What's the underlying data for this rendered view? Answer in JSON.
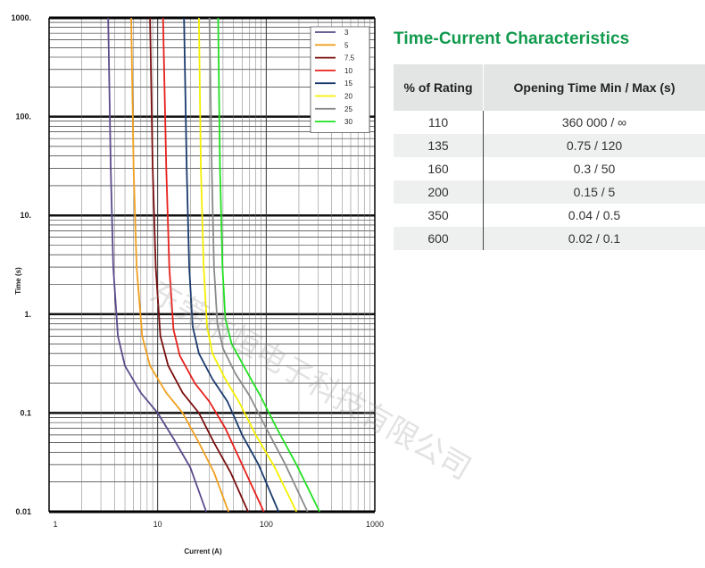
{
  "title": "Time-Current Characteristics",
  "table": {
    "headers": [
      "% of Rating",
      "Opening Time Min / Max (s)"
    ],
    "rows": [
      [
        "110",
        "360 000 / ∞"
      ],
      [
        "135",
        "0.75 / 120"
      ],
      [
        "160",
        "0.3 / 50"
      ],
      [
        "200",
        "0.15 / 5"
      ],
      [
        "350",
        "0.04 / 0.5"
      ],
      [
        "600",
        "0.02 / 0.1"
      ]
    ]
  },
  "watermark": "东莞市恒电子科技有限公司",
  "chart_data": {
    "type": "line",
    "xlabel": "Current (A)",
    "ylabel": "Time (s)",
    "x_scale": "log",
    "y_scale": "log",
    "xlim": [
      1,
      1000
    ],
    "ylim": [
      0.01,
      1000
    ],
    "x_tick_labels": [
      "1",
      "10",
      "100",
      "1000"
    ],
    "y_tick_labels": [
      "0.01",
      "0.1",
      "1.",
      "10.",
      "100.",
      "1000."
    ],
    "grid": true,
    "legend_position": "top-right",
    "series": [
      {
        "name": "3",
        "color": "#5a4a8a",
        "points": [
          [
            3.5,
            1000
          ],
          [
            3.7,
            30
          ],
          [
            3.9,
            3
          ],
          [
            4.3,
            0.6
          ],
          [
            5.0,
            0.3
          ],
          [
            7,
            0.16
          ],
          [
            10,
            0.1
          ],
          [
            14,
            0.055
          ],
          [
            20,
            0.028
          ],
          [
            28,
            0.01
          ]
        ]
      },
      {
        "name": "5",
        "color": "#f0a020",
        "points": [
          [
            5.7,
            1000
          ],
          [
            6.0,
            30
          ],
          [
            6.4,
            3
          ],
          [
            7.2,
            0.6
          ],
          [
            8.5,
            0.3
          ],
          [
            12,
            0.16
          ],
          [
            17,
            0.1
          ],
          [
            24,
            0.05
          ],
          [
            33,
            0.025
          ],
          [
            45,
            0.01
          ]
        ]
      },
      {
        "name": "7.5",
        "color": "#7a0f0f",
        "points": [
          [
            8.5,
            1000
          ],
          [
            9.0,
            30
          ],
          [
            9.6,
            3
          ],
          [
            10.6,
            0.6
          ],
          [
            12.5,
            0.3
          ],
          [
            17,
            0.16
          ],
          [
            24,
            0.1
          ],
          [
            33,
            0.05
          ],
          [
            47,
            0.025
          ],
          [
            68,
            0.01
          ]
        ]
      },
      {
        "name": "10",
        "color": "#e8201c",
        "points": [
          [
            11.2,
            1000
          ],
          [
            12.0,
            30
          ],
          [
            12.8,
            3
          ],
          [
            14,
            0.7
          ],
          [
            16,
            0.38
          ],
          [
            22,
            0.2
          ],
          [
            30,
            0.13
          ],
          [
            42,
            0.07
          ],
          [
            60,
            0.03
          ],
          [
            95,
            0.01
          ]
        ]
      },
      {
        "name": "15",
        "color": "#1a3a6e",
        "points": [
          [
            17.5,
            1000
          ],
          [
            18.5,
            30
          ],
          [
            19.5,
            3
          ],
          [
            21,
            0.75
          ],
          [
            24,
            0.4
          ],
          [
            32,
            0.22
          ],
          [
            44,
            0.13
          ],
          [
            60,
            0.06
          ],
          [
            85,
            0.03
          ],
          [
            130,
            0.01
          ]
        ]
      },
      {
        "name": "20",
        "color": "#f5f000",
        "points": [
          [
            24,
            1000
          ],
          [
            25,
            30
          ],
          [
            26.5,
            3
          ],
          [
            28.5,
            0.75
          ],
          [
            32,
            0.4
          ],
          [
            42,
            0.22
          ],
          [
            56,
            0.13
          ],
          [
            80,
            0.06
          ],
          [
            120,
            0.028
          ],
          [
            190,
            0.01
          ]
        ]
      },
      {
        "name": "25",
        "color": "#8a8a8a",
        "points": [
          [
            30,
            1000
          ],
          [
            31.5,
            30
          ],
          [
            33,
            3
          ],
          [
            35.5,
            0.8
          ],
          [
            40,
            0.45
          ],
          [
            52,
            0.25
          ],
          [
            70,
            0.15
          ],
          [
            100,
            0.07
          ],
          [
            150,
            0.03
          ],
          [
            240,
            0.01
          ]
        ]
      },
      {
        "name": "30",
        "color": "#22e022",
        "points": [
          [
            36,
            1000
          ],
          [
            37.5,
            30
          ],
          [
            39.5,
            3
          ],
          [
            42,
            0.9
          ],
          [
            48,
            0.5
          ],
          [
            64,
            0.28
          ],
          [
            88,
            0.15
          ],
          [
            125,
            0.07
          ],
          [
            190,
            0.03
          ],
          [
            310,
            0.01
          ]
        ]
      }
    ]
  }
}
